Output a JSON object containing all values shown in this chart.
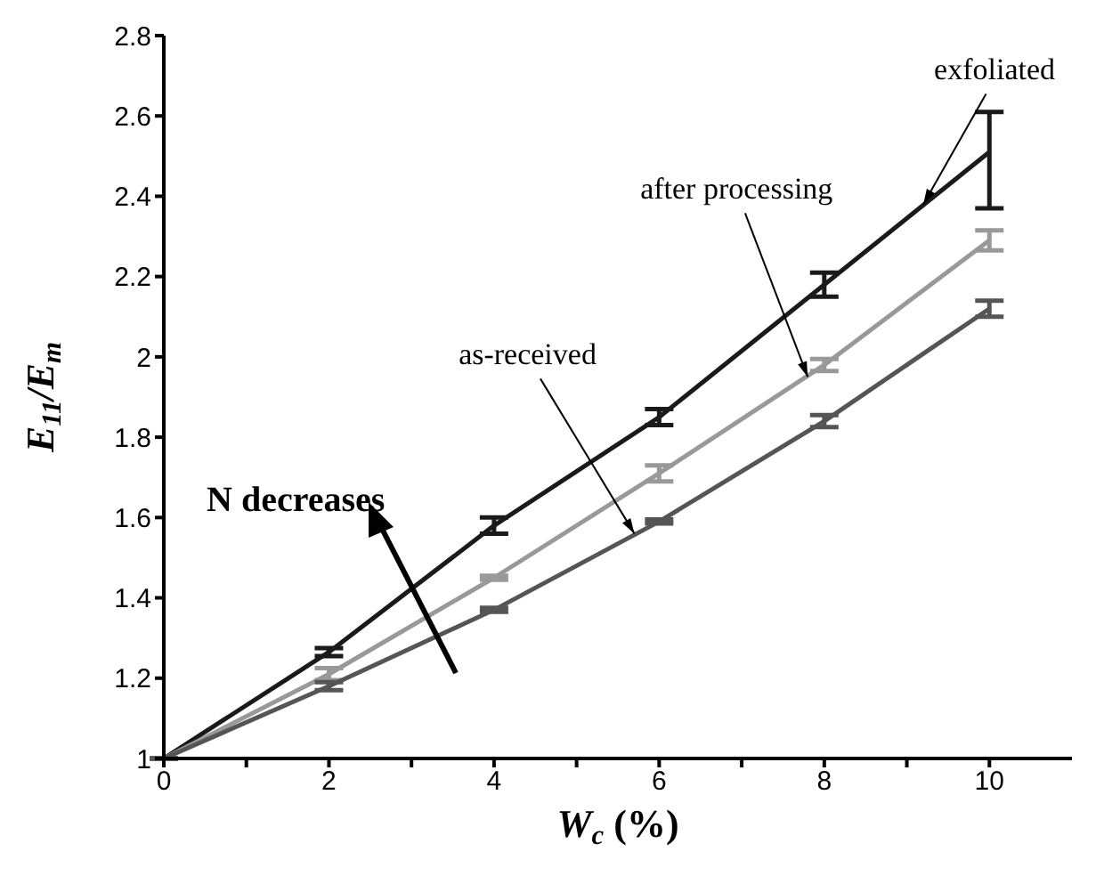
{
  "chart_data": {
    "type": "line",
    "xlabel": "W$_{c}$ (%)",
    "ylabel": "E$_{11}$/E$_{m}$",
    "x": [
      0,
      2,
      4,
      6,
      8,
      10
    ],
    "series": [
      {
        "color": "#1a1a1a",
        "values": [
          1,
          1.265,
          1.58,
          1.85,
          2.18,
          2.51
        ],
        "errors": [
          null,
          0.01,
          0.02,
          0.02,
          0.03,
          [
            2.37,
            2.61
          ]
        ]
      },
      {
        "color": "#999999",
        "values": [
          1,
          1.21,
          1.45,
          1.71,
          1.98,
          2.29
        ],
        "errors": [
          null,
          0.015,
          0.005,
          0.02,
          0.015,
          0.025
        ]
      },
      {
        "color": "#555555",
        "values": [
          1,
          1.18,
          1.37,
          1.59,
          1.84,
          2.12
        ],
        "errors": [
          null,
          0.01,
          0.005,
          0.005,
          0.015,
          0.02
        ]
      }
    ],
    "annotations": [
      {
        "text": "exfoliated",
        "x": 9.2,
        "y": 2.38
      },
      {
        "text": "after processing",
        "x": 7.8,
        "y": 1.95
      },
      {
        "text": "as-received",
        "x": 5.7,
        "y": 1.56
      },
      "N decreases"
    ],
    "xlim": [
      0,
      11
    ],
    "xticks": [
      0,
      {
        "value": 1,
        "label": null
      },
      2,
      {
        "value": 3,
        "label": null
      },
      4,
      {
        "value": 5,
        "label": null
      },
      6,
      {
        "value": 7,
        "label": null
      },
      8,
      {
        "value": 9,
        "label": null
      },
      10
    ],
    "ylim": [
      1,
      2.8
    ],
    "yticks": [
      1,
      1.2,
      1.4,
      1.6,
      1.8,
      2,
      2.2,
      2.4,
      2.6,
      2.8
    ],
    "grid": false,
    "legend": false,
    "marker": "none",
    "line_style": "solid"
  }
}
